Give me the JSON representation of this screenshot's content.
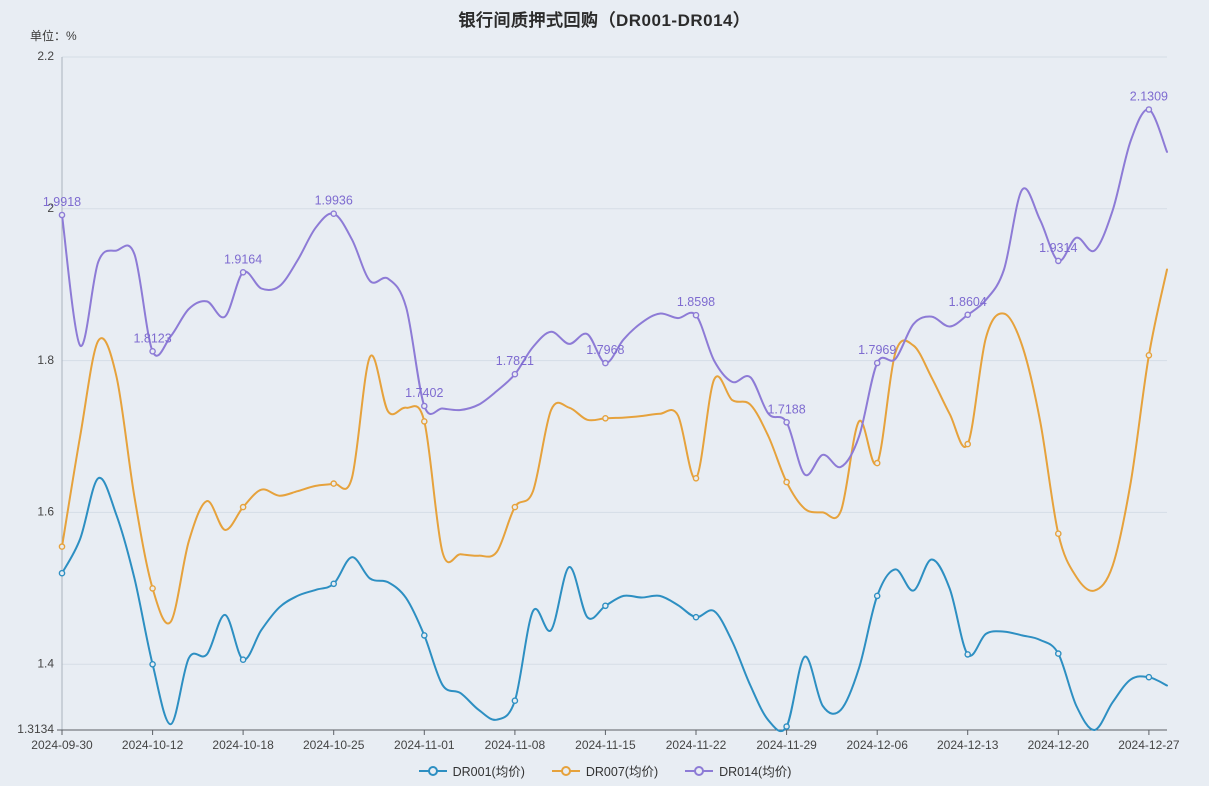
{
  "page": {
    "background": "#E8EDF3",
    "grid_line_color": "#D5DDE6",
    "axis_line_color": "#5B6066",
    "y_axis_line_color": "#AAB2BC",
    "tick_label_color": "#444444"
  },
  "header": {
    "title": "银行间质押式回购（DR001-DR014）",
    "unit_label": "单位：%"
  },
  "chart_data": {
    "type": "line",
    "title": "银行间质押式回购（DR001-DR014）",
    "xlabel": "",
    "ylabel": "单位：%",
    "ylim": [
      1.3134,
      2.2
    ],
    "grid": true,
    "legend_position": "bottom",
    "smooth": true,
    "y_tick_values": [
      1.3134,
      1.4,
      1.6,
      1.8,
      2.0,
      2.2
    ],
    "y_tick_labels": [
      "1.3134",
      "1.4",
      "1.6",
      "1.8",
      "2",
      "2.2"
    ],
    "x_tick_indices": [
      0,
      5,
      10,
      15,
      20,
      25,
      30,
      35,
      40,
      45,
      50,
      55,
      60
    ],
    "x_tick_labels": [
      "2024-09-30",
      "2024-10-12",
      "2024-10-18",
      "2024-10-25",
      "2024-11-01",
      "2024-11-08",
      "2024-11-15",
      "2024-11-22",
      "2024-11-29",
      "2024-12-06",
      "2024-12-13",
      "2024-12-20",
      "2024-12-27"
    ],
    "dates": [
      "2024-09-30",
      "2024-10-08",
      "2024-10-09",
      "2024-10-10",
      "2024-10-11",
      "2024-10-12",
      "2024-10-14",
      "2024-10-15",
      "2024-10-16",
      "2024-10-17",
      "2024-10-18",
      "2024-10-21",
      "2024-10-22",
      "2024-10-23",
      "2024-10-24",
      "2024-10-25",
      "2024-10-28",
      "2024-10-29",
      "2024-10-30",
      "2024-10-31",
      "2024-11-01",
      "2024-11-04",
      "2024-11-05",
      "2024-11-06",
      "2024-11-07",
      "2024-11-08",
      "2024-11-11",
      "2024-11-12",
      "2024-11-13",
      "2024-11-14",
      "2024-11-15",
      "2024-11-18",
      "2024-11-19",
      "2024-11-20",
      "2024-11-21",
      "2024-11-22",
      "2024-11-25",
      "2024-11-26",
      "2024-11-27",
      "2024-11-28",
      "2024-11-29",
      "2024-12-02",
      "2024-12-03",
      "2024-12-04",
      "2024-12-05",
      "2024-12-06",
      "2024-12-09",
      "2024-12-10",
      "2024-12-11",
      "2024-12-12",
      "2024-12-13",
      "2024-12-16",
      "2024-12-17",
      "2024-12-18",
      "2024-12-19",
      "2024-12-20",
      "2024-12-23",
      "2024-12-24",
      "2024-12-25",
      "2024-12-26",
      "2024-12-27",
      "2024-12-30"
    ],
    "series": [
      {
        "name": "DR001(均价)",
        "color": "#2D8FC2",
        "values": [
          1.52,
          1.565,
          1.645,
          1.597,
          1.513,
          1.4,
          1.321,
          1.408,
          1.413,
          1.465,
          1.406,
          1.445,
          1.475,
          1.49,
          1.498,
          1.506,
          1.541,
          1.513,
          1.508,
          1.487,
          1.438,
          1.373,
          1.362,
          1.34,
          1.327,
          1.352,
          1.47,
          1.445,
          1.528,
          1.462,
          1.477,
          1.49,
          1.488,
          1.49,
          1.478,
          1.462,
          1.47,
          1.43,
          1.372,
          1.326,
          1.318,
          1.41,
          1.345,
          1.34,
          1.395,
          1.49,
          1.525,
          1.497,
          1.538,
          1.5,
          1.413,
          1.44,
          1.443,
          1.438,
          1.432,
          1.414,
          1.345,
          1.3134,
          1.35,
          1.38,
          1.383,
          1.372
        ],
        "point_labels": []
      },
      {
        "name": "DR007(均价)",
        "color": "#E6A23C",
        "values": [
          1.555,
          1.7,
          1.826,
          1.78,
          1.62,
          1.5,
          1.456,
          1.562,
          1.615,
          1.577,
          1.607,
          1.63,
          1.622,
          1.628,
          1.635,
          1.638,
          1.645,
          1.805,
          1.733,
          1.738,
          1.72,
          1.548,
          1.545,
          1.543,
          1.548,
          1.607,
          1.628,
          1.735,
          1.738,
          1.722,
          1.724,
          1.725,
          1.727,
          1.73,
          1.728,
          1.645,
          1.775,
          1.748,
          1.742,
          1.7,
          1.64,
          1.605,
          1.6,
          1.602,
          1.72,
          1.665,
          1.81,
          1.82,
          1.778,
          1.73,
          1.69,
          1.83,
          1.862,
          1.82,
          1.72,
          1.572,
          1.515,
          1.497,
          1.53,
          1.64,
          1.807,
          1.92
        ],
        "point_labels": []
      },
      {
        "name": "DR014(均价)",
        "color": "#8D7BD6",
        "label_color": "#7E6BD0",
        "values": [
          1.9918,
          1.82,
          1.93,
          1.945,
          1.94,
          1.8123,
          1.832,
          1.868,
          1.878,
          1.858,
          1.9164,
          1.895,
          1.898,
          1.932,
          1.975,
          1.9936,
          1.96,
          1.905,
          1.908,
          1.87,
          1.7402,
          1.737,
          1.735,
          1.742,
          1.76,
          1.7821,
          1.818,
          1.838,
          1.822,
          1.835,
          1.7968,
          1.828,
          1.85,
          1.862,
          1.856,
          1.8598,
          1.8,
          1.772,
          1.778,
          1.73,
          1.7188,
          1.65,
          1.676,
          1.66,
          1.7,
          1.7969,
          1.802,
          1.848,
          1.858,
          1.845,
          1.8604,
          1.88,
          1.92,
          2.025,
          1.985,
          1.9314,
          1.962,
          1.945,
          1.998,
          2.09,
          2.1309,
          2.075
        ],
        "point_labels": [
          {
            "i": 0,
            "v": "1.9918"
          },
          {
            "i": 5,
            "v": "1.8123"
          },
          {
            "i": 10,
            "v": "1.9164"
          },
          {
            "i": 15,
            "v": "1.9936"
          },
          {
            "i": 20,
            "v": "1.7402"
          },
          {
            "i": 25,
            "v": "1.7821"
          },
          {
            "i": 30,
            "v": "1.7968"
          },
          {
            "i": 35,
            "v": "1.8598"
          },
          {
            "i": 40,
            "v": "1.7188"
          },
          {
            "i": 45,
            "v": "1.7969"
          },
          {
            "i": 50,
            "v": "1.8604"
          },
          {
            "i": 55,
            "v": "1.9314"
          },
          {
            "i": 60,
            "v": "2.1309"
          }
        ]
      }
    ]
  }
}
